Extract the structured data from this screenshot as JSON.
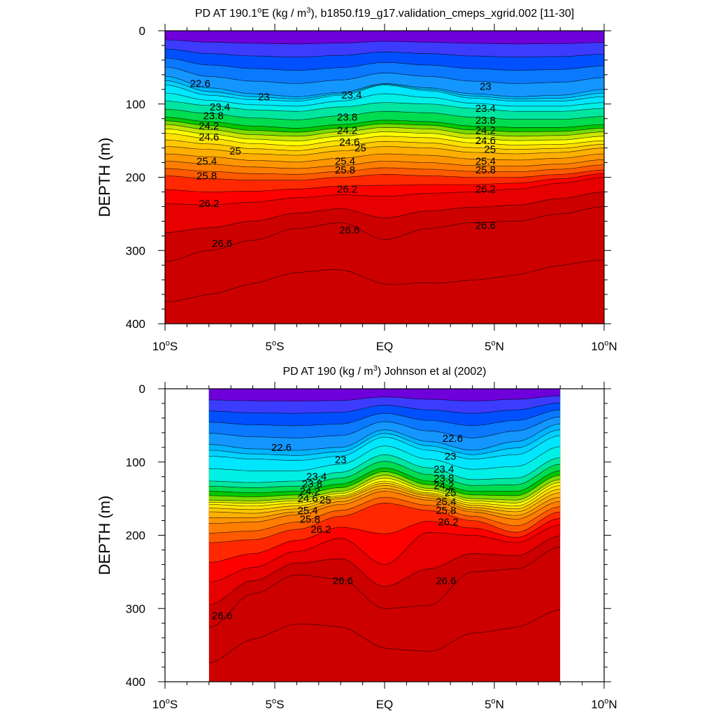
{
  "chart_data": [
    {
      "type": "contour",
      "title": "PD AT 190.1°E (kg / m³), b1850.f19_g17.validation_cmeps_xgrid.002 [11-30]",
      "title_parts": [
        "PD AT 190.1",
        "o",
        "E (kg / m",
        "3",
        "), b1850.f19_g17.validation_cmeps_xgrid.002 [11-30]"
      ],
      "xlabel": "",
      "ylabel": "DEPTH (m)",
      "xlim": [
        -10,
        10
      ],
      "ylim": [
        400,
        0
      ],
      "x_ticks": [
        {
          "value": -10,
          "num": "10",
          "hemi": "S"
        },
        {
          "value": -5,
          "num": "5",
          "hemi": "S"
        },
        {
          "value": 0,
          "num": "EQ",
          "hemi": ""
        },
        {
          "value": 5,
          "num": "5",
          "hemi": "N"
        },
        {
          "value": 10,
          "num": "10",
          "hemi": "N"
        }
      ],
      "y_ticks": [
        0,
        100,
        200,
        300,
        400
      ],
      "data_extent_x": [
        -10,
        10
      ],
      "contour_interval": 0.2,
      "isopycnals": [
        {
          "level": 22.6,
          "x": [
            -10,
            -8,
            -6,
            -4,
            -2,
            0,
            2,
            4,
            6,
            8,
            10
          ],
          "y": [
            62,
            78,
            86,
            90,
            84,
            72,
            78,
            86,
            90,
            88,
            80
          ]
        },
        {
          "level": 23.0,
          "x": [
            -10,
            -8,
            -6,
            -4,
            -2,
            0,
            2,
            4,
            6,
            8,
            10
          ],
          "y": [
            74,
            88,
            94,
            96,
            88,
            74,
            82,
            92,
            96,
            96,
            90
          ]
        },
        {
          "level": 23.4,
          "x": [
            -10,
            -8,
            -6,
            -4,
            -2,
            0,
            2,
            4,
            6,
            8,
            10
          ],
          "y": [
            96,
            102,
            108,
            110,
            104,
            98,
            100,
            106,
            110,
            110,
            106
          ]
        },
        {
          "level": 23.8,
          "x": [
            -10,
            -8,
            -6,
            -4,
            -2,
            0,
            2,
            4,
            6,
            8,
            10
          ],
          "y": [
            118,
            124,
            130,
            133,
            128,
            122,
            124,
            130,
            132,
            132,
            128
          ]
        },
        {
          "level": 24.2,
          "x": [
            -10,
            -8,
            -6,
            -4,
            -2,
            0,
            2,
            4,
            6,
            8,
            10
          ],
          "y": [
            128,
            135,
            142,
            144,
            138,
            132,
            134,
            141,
            144,
            143,
            138
          ]
        },
        {
          "level": 24.6,
          "x": [
            -10,
            -8,
            -6,
            -4,
            -2,
            0,
            2,
            4,
            6,
            8,
            10
          ],
          "y": [
            140,
            147,
            154,
            157,
            150,
            144,
            146,
            153,
            156,
            155,
            150
          ]
        },
        {
          "level": 25.0,
          "x": [
            -10,
            -8,
            -6,
            -4,
            -2,
            0,
            2,
            4,
            6,
            8,
            10
          ],
          "y": [
            158,
            162,
            168,
            170,
            164,
            158,
            160,
            166,
            168,
            166,
            160
          ]
        },
        {
          "level": 25.4,
          "x": [
            -10,
            -8,
            -6,
            -4,
            -2,
            0,
            2,
            4,
            6,
            8,
            10
          ],
          "y": [
            178,
            182,
            186,
            188,
            184,
            178,
            180,
            184,
            185,
            182,
            176
          ]
        },
        {
          "level": 25.8,
          "x": [
            -10,
            -8,
            -6,
            -4,
            -2,
            0,
            2,
            4,
            6,
            8,
            10
          ],
          "y": [
            198,
            202,
            204,
            204,
            200,
            196,
            198,
            200,
            200,
            196,
            190
          ]
        },
        {
          "level": 26.2,
          "x": [
            -10,
            -8,
            -6,
            -4,
            -2,
            0,
            2,
            4,
            6,
            8,
            10
          ],
          "y": [
            236,
            238,
            234,
            228,
            224,
            226,
            222,
            220,
            216,
            208,
            200
          ]
        },
        {
          "level": 26.6,
          "x": [
            -10,
            -8,
            -6,
            -4,
            -2,
            0,
            2,
            4,
            6,
            8,
            10
          ],
          "y": [
            315,
            300,
            286,
            270,
            262,
            285,
            270,
            262,
            260,
            250,
            240
          ]
        }
      ],
      "labels": [
        {
          "text": "22.6",
          "x": -8.4,
          "y": 72
        },
        {
          "text": "23",
          "x": -5.5,
          "y": 90
        },
        {
          "text": "23.4",
          "x": -1.5,
          "y": 88
        },
        {
          "text": "23",
          "x": 4.6,
          "y": 76
        },
        {
          "text": "23.4",
          "x": -7.5,
          "y": 104
        },
        {
          "text": "23.4",
          "x": 4.6,
          "y": 106
        },
        {
          "text": "23.8",
          "x": -7.8,
          "y": 116
        },
        {
          "text": "23.8",
          "x": -1.7,
          "y": 118
        },
        {
          "text": "23.8",
          "x": 4.6,
          "y": 122
        },
        {
          "text": "24.2",
          "x": -8.0,
          "y": 130
        },
        {
          "text": "24.2",
          "x": -1.7,
          "y": 136
        },
        {
          "text": "24.2",
          "x": 4.6,
          "y": 136
        },
        {
          "text": "24.6",
          "x": -8.0,
          "y": 145
        },
        {
          "text": "24.6",
          "x": -1.6,
          "y": 152
        },
        {
          "text": "24.6",
          "x": 4.6,
          "y": 150
        },
        {
          "text": "25",
          "x": -6.8,
          "y": 164
        },
        {
          "text": "25",
          "x": -1.1,
          "y": 160
        },
        {
          "text": "25",
          "x": 4.8,
          "y": 162
        },
        {
          "text": "25.4",
          "x": -8.1,
          "y": 178
        },
        {
          "text": "25.4",
          "x": -1.8,
          "y": 178
        },
        {
          "text": "25.4",
          "x": 4.6,
          "y": 178
        },
        {
          "text": "25.8",
          "x": -8.1,
          "y": 198
        },
        {
          "text": "25.8",
          "x": -1.8,
          "y": 190
        },
        {
          "text": "25.8",
          "x": 4.6,
          "y": 190
        },
        {
          "text": "26.2",
          "x": -8.0,
          "y": 236
        },
        {
          "text": "26.2",
          "x": -1.7,
          "y": 216
        },
        {
          "text": "26.2",
          "x": 4.6,
          "y": 216
        },
        {
          "text": "26.6",
          "x": -7.4,
          "y": 290
        },
        {
          "text": "26.6",
          "x": -1.6,
          "y": 272
        },
        {
          "text": "26.6",
          "x": 4.6,
          "y": 266
        }
      ]
    },
    {
      "type": "contour",
      "title": "PD AT 190 (kg / m³) Johnson et al (2002)",
      "title_parts": [
        "PD AT 190 (kg / m",
        "3",
        ") Johnson et al (2002)"
      ],
      "xlabel": "",
      "ylabel": "DEPTH (m)",
      "xlim": [
        -10,
        10
      ],
      "ylim": [
        400,
        0
      ],
      "x_ticks": [
        {
          "value": -10,
          "num": "10",
          "hemi": "S"
        },
        {
          "value": -5,
          "num": "5",
          "hemi": "S"
        },
        {
          "value": 0,
          "num": "EQ",
          "hemi": ""
        },
        {
          "value": 5,
          "num": "5",
          "hemi": "N"
        },
        {
          "value": 10,
          "num": "10",
          "hemi": "N"
        }
      ],
      "y_ticks": [
        0,
        100,
        200,
        300,
        400
      ],
      "data_extent_x": [
        -8,
        8
      ],
      "contour_interval": 0.2,
      "isopycnals": [
        {
          "level": 22.6,
          "x": [
            -8,
            -6,
            -4,
            -2,
            0,
            2,
            4,
            6,
            8
          ],
          "y": [
            76,
            82,
            84,
            80,
            56,
            72,
            84,
            72,
            48
          ]
        },
        {
          "level": 23.0,
          "x": [
            -8,
            -6,
            -4,
            -2,
            0,
            2,
            4,
            6,
            8
          ],
          "y": [
            92,
            96,
            98,
            92,
            66,
            84,
            96,
            90,
            64
          ]
        },
        {
          "level": 23.4,
          "x": [
            -8,
            -6,
            -4,
            -2,
            0,
            2,
            4,
            6,
            8
          ],
          "y": [
            126,
            128,
            126,
            114,
            90,
            108,
            124,
            122,
            94
          ]
        },
        {
          "level": 23.8,
          "x": [
            -8,
            -6,
            -4,
            -2,
            0,
            2,
            4,
            6,
            8
          ],
          "y": [
            140,
            142,
            140,
            130,
            108,
            126,
            140,
            140,
            112
          ]
        },
        {
          "level": 24.2,
          "x": [
            -8,
            -6,
            -4,
            -2,
            0,
            2,
            4,
            6,
            8
          ],
          "y": [
            152,
            153,
            150,
            140,
            118,
            136,
            150,
            152,
            124
          ]
        },
        {
          "level": 24.6,
          "x": [
            -8,
            -6,
            -4,
            -2,
            0,
            2,
            4,
            6,
            8
          ],
          "y": [
            158,
            160,
            156,
            146,
            126,
            142,
            156,
            160,
            132
          ]
        },
        {
          "level": 25.0,
          "x": [
            -8,
            -6,
            -4,
            -2,
            0,
            2,
            4,
            6,
            8
          ],
          "y": [
            168,
            170,
            164,
            150,
            132,
            146,
            162,
            168,
            142
          ]
        },
        {
          "level": 25.4,
          "x": [
            -8,
            -6,
            -4,
            -2,
            0,
            2,
            4,
            6,
            8
          ],
          "y": [
            184,
            182,
            172,
            158,
            140,
            152,
            168,
            178,
            154
          ]
        },
        {
          "level": 25.8,
          "x": [
            -8,
            -6,
            -4,
            -2,
            0,
            2,
            4,
            6,
            8
          ],
          "y": [
            210,
            206,
            192,
            174,
            156,
            166,
            180,
            196,
            168
          ]
        },
        {
          "level": 26.2,
          "x": [
            -8,
            -6,
            -4,
            -2,
            0,
            2,
            4,
            6,
            8
          ],
          "y": [
            264,
            244,
            222,
            204,
            240,
            196,
            200,
            210,
            186
          ]
        },
        {
          "level": 26.6,
          "x": [
            -8,
            -6,
            -4,
            -2,
            0,
            2,
            4,
            6,
            8
          ],
          "y": [
            326,
            280,
            254,
            260,
            300,
            296,
            250,
            246,
            216
          ]
        }
      ],
      "labels": [
        {
          "text": "22.6",
          "x": -4.7,
          "y": 80
        },
        {
          "text": "23",
          "x": -2.0,
          "y": 97
        },
        {
          "text": "22.6",
          "x": 3.1,
          "y": 68
        },
        {
          "text": "23",
          "x": 3.0,
          "y": 92
        },
        {
          "text": "23.4",
          "x": -3.1,
          "y": 120
        },
        {
          "text": "23.4",
          "x": 2.7,
          "y": 110
        },
        {
          "text": "23.8",
          "x": -3.3,
          "y": 130
        },
        {
          "text": "23.8",
          "x": 2.7,
          "y": 122
        },
        {
          "text": "24.2",
          "x": -3.4,
          "y": 140
        },
        {
          "text": "24.2",
          "x": 2.7,
          "y": 132
        },
        {
          "text": "24.6",
          "x": -3.5,
          "y": 150
        },
        {
          "text": "25",
          "x": 3.0,
          "y": 142
        },
        {
          "text": "25",
          "x": -2.7,
          "y": 152
        },
        {
          "text": "25.4",
          "x": 2.8,
          "y": 154
        },
        {
          "text": "25.4",
          "x": -3.5,
          "y": 166
        },
        {
          "text": "25.8",
          "x": 2.8,
          "y": 166
        },
        {
          "text": "25.8",
          "x": -3.4,
          "y": 178
        },
        {
          "text": "26.2",
          "x": 2.9,
          "y": 182
        },
        {
          "text": "26.2",
          "x": -2.9,
          "y": 192
        },
        {
          "text": "26.6",
          "x": -1.9,
          "y": 262
        },
        {
          "text": "26.6",
          "x": 2.8,
          "y": 262
        },
        {
          "text": "26.6",
          "x": -7.4,
          "y": 310
        }
      ]
    }
  ]
}
